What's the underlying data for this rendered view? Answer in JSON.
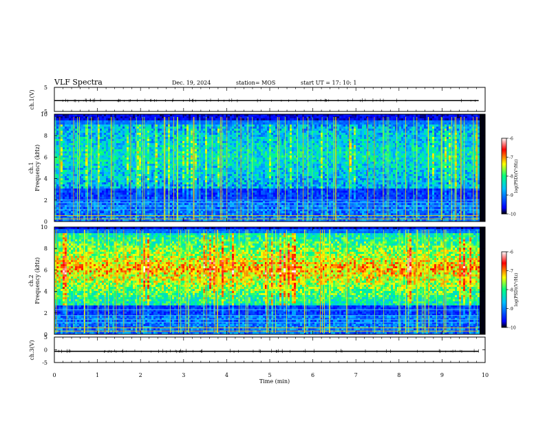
{
  "header": {
    "title": "VLF Spectra",
    "date": "Dec. 19, 2024",
    "station": "station= MOS",
    "start": "start  UT  =   17: 10: 1"
  },
  "chart_data": [
    {
      "type": "line",
      "id": "ch1-waveform",
      "ylabel": "ch.1(V)",
      "ylim": [
        -5,
        5
      ],
      "yticks": [
        "5",
        "-5"
      ],
      "xlim": [
        0,
        10
      ],
      "trace_value": -0.5,
      "trace_end_min": 9.85
    },
    {
      "type": "heatmap",
      "id": "ch1-spectrogram",
      "ylabel": "Frequency (kHz)",
      "channel_label": "ch.1",
      "ylim": [
        0,
        10
      ],
      "yticks": [
        "0",
        "2",
        "4",
        "6",
        "8",
        "10"
      ],
      "xlim": [
        0,
        10
      ],
      "colorbar": {
        "label": "log(PSD)(V²/Hz)",
        "range": [
          -10,
          -6
        ],
        "ticks": [
          "-6",
          "-7",
          "-8",
          "-9",
          "-10"
        ],
        "colors": [
          "#000000",
          "#0000ff",
          "#00c0ff",
          "#00ff80",
          "#ffff00",
          "#ff0000",
          "#ffffff"
        ]
      },
      "features": {
        "noise_band_khz": [
          3.2,
          9.2
        ],
        "dark_band_khz": [
          2.0,
          3.2
        ],
        "hum_lines_khz": [
          0.25,
          0.55,
          1.1,
          1.45,
          1.75,
          2.0
        ],
        "level": "moderate"
      }
    },
    {
      "type": "heatmap",
      "id": "ch2-spectrogram",
      "ylabel": "Frequency (kHz)",
      "channel_label": "ch.2",
      "ylim": [
        0,
        10
      ],
      "yticks": [
        "0",
        "2",
        "4",
        "6",
        "8",
        "10"
      ],
      "xlim": [
        0,
        10
      ],
      "colorbar": {
        "label": "log(PSD)(V²/Hz)",
        "range": [
          -10,
          -6
        ],
        "ticks": [
          "-6",
          "-7",
          "-8",
          "-9",
          "-10"
        ],
        "colors": [
          "#000000",
          "#0000ff",
          "#00c0ff",
          "#00ff80",
          "#ffff00",
          "#ff0000",
          "#ffffff"
        ]
      },
      "features": {
        "noise_band_khz": [
          2.8,
          9.6
        ],
        "dark_band_khz": [
          1.9,
          2.8
        ],
        "hum_lines_khz": [
          0.3,
          0.6,
          1.1,
          1.4,
          1.75,
          2.3
        ],
        "level": "high"
      }
    },
    {
      "type": "line",
      "id": "ch3-waveform",
      "ylabel": "ch.3(V)",
      "ylim": [
        -5,
        5
      ],
      "yticks": [
        "5",
        "0",
        "-5"
      ],
      "xlim": [
        0,
        10
      ],
      "trace_value": -0.6,
      "trace_end_min": 9.85
    },
    {
      "type": "axis",
      "id": "time-axis",
      "xlabel": "Time  (min)",
      "xlim": [
        0,
        10
      ],
      "xticks": [
        "0",
        "1",
        "2",
        "3",
        "4",
        "5",
        "6",
        "7",
        "8",
        "9",
        "10"
      ]
    }
  ]
}
